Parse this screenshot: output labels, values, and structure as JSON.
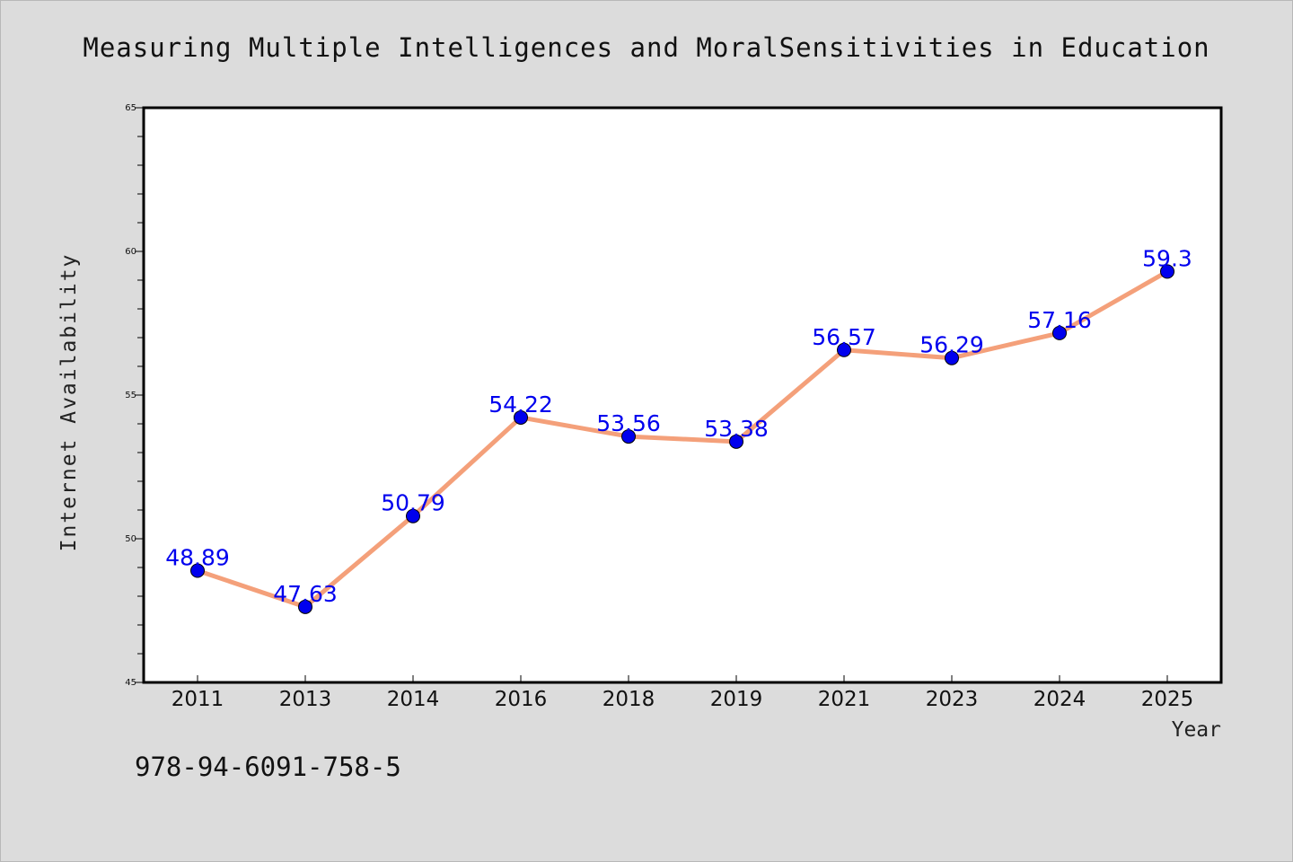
{
  "chart_data": {
    "type": "line",
    "title": "Measuring Multiple Intelligences and MoralSensitivities in Education",
    "xlabel": "Year",
    "ylabel": "Internet Availability",
    "categories": [
      "2011",
      "2013",
      "2014",
      "2016",
      "2018",
      "2019",
      "2021",
      "2023",
      "2024",
      "2025"
    ],
    "series": [
      {
        "values": [
          48.89,
          47.63,
          50.79,
          54.22,
          53.56,
          53.38,
          56.57,
          56.29,
          57.16,
          59.3
        ],
        "labels": [
          "48.89",
          "47.63",
          "50.79",
          "54.22",
          "53.56",
          "53.38",
          "56.57",
          "56.29",
          "57.16",
          "59.3"
        ],
        "line_color": "#f4a07a",
        "marker_color": "#0000ee"
      }
    ],
    "ylim": [
      45,
      65
    ],
    "yticks": [
      "45",
      "50",
      "55",
      "60",
      "65"
    ],
    "grid": false,
    "legend": "none"
  },
  "annotation": {
    "isbn": "978-94-6091-758-5"
  }
}
